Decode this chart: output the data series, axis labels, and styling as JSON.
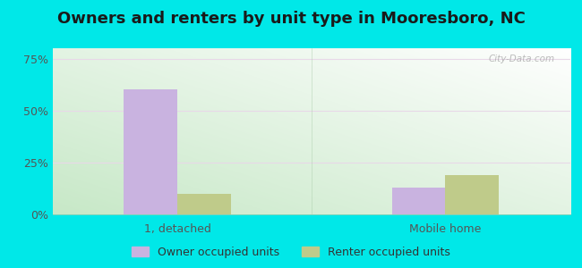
{
  "title": "Owners and renters by unit type in Mooresboro, NC",
  "categories": [
    "1, detached",
    "Mobile home"
  ],
  "owner_values": [
    60.0,
    13.0
  ],
  "renter_values": [
    10.0,
    19.0
  ],
  "owner_color": "#c9b3e0",
  "renter_color": "#bfcb8a",
  "yticks": [
    0,
    25,
    50,
    75
  ],
  "ytick_labels": [
    "0%",
    "25%",
    "50%",
    "75%"
  ],
  "ylim": [
    0,
    80
  ],
  "bar_width": 0.3,
  "outer_background": "#00e8e8",
  "watermark": "City-Data.com",
  "legend_labels": [
    "Owner occupied units",
    "Renter occupied units"
  ],
  "title_fontsize": 13,
  "tick_fontsize": 9,
  "legend_fontsize": 9,
  "bg_color_topleft": "#d4edd4",
  "bg_color_topright": "#e8f5f5",
  "bg_color_bottomleft": "#c8e8c8",
  "bg_color_bottomright": "#ffffff"
}
